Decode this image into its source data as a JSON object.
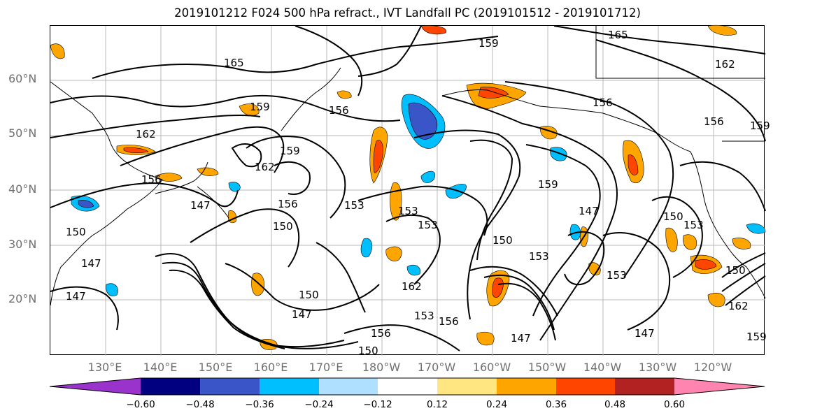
{
  "title": "2019101212 F024 500 hPa refract., IVT Landfall PC (2019101512 - 2019101712)",
  "lat_labels": [
    "60°N",
    "50°N",
    "40°N",
    "30°N",
    "20°N"
  ],
  "lon_labels": [
    "130°E",
    "140°E",
    "150°E",
    "160°E",
    "170°E",
    "180°W",
    "170°W",
    "160°W",
    "150°W",
    "140°W",
    "130°W",
    "120°W"
  ],
  "contour_labels": [
    "165",
    "159",
    "165",
    "162",
    "156",
    "159",
    "162",
    "159",
    "156",
    "162",
    "156",
    "156",
    "159",
    "147",
    "153",
    "153",
    "156",
    "150",
    "153",
    "150",
    "159",
    "147",
    "150",
    "153",
    "150",
    "150",
    "147",
    "153",
    "150",
    "147",
    "162",
    "156",
    "153",
    "156",
    "147",
    "147",
    "162",
    "159",
    "147",
    "150",
    "153"
  ],
  "colorbar": {
    "ticks": [
      "−0.60",
      "−0.48",
      "−0.36",
      "−0.24",
      "−0.12",
      "0.12",
      "0.24",
      "0.36",
      "0.48",
      "0.60"
    ],
    "colors": [
      "#9933cc",
      "#000080",
      "#3a55c8",
      "#00bfff",
      "#b0e0ff",
      "#ffffff",
      "#ffe680",
      "#ffa500",
      "#ff4500",
      "#b22222",
      "#ff85b0"
    ]
  }
}
